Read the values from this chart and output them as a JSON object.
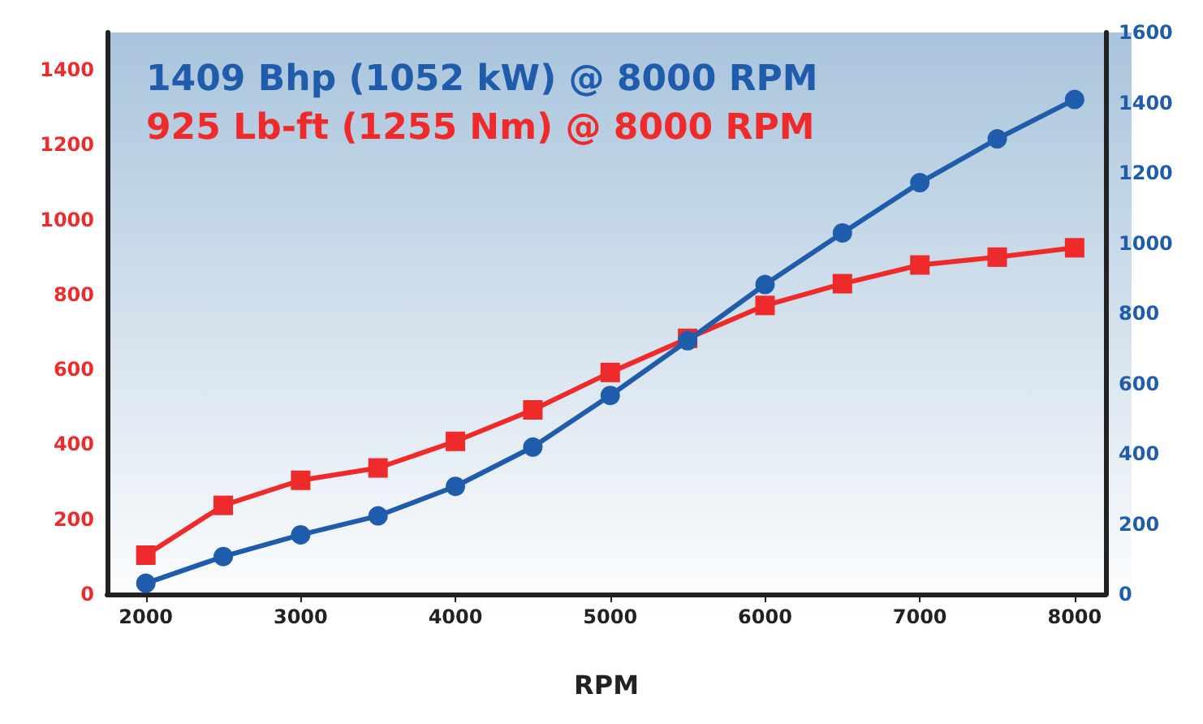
{
  "chart_data": {
    "type": "line",
    "xlabel": "RPM",
    "annotations": [
      "1409 Bhp (1052 kW) @ 8000 RPM",
      "925 Lb-ft (1255 Nm) @ 8000 RPM"
    ],
    "x": [
      2000,
      2500,
      3000,
      3500,
      4000,
      4500,
      5000,
      5500,
      6000,
      6500,
      7000,
      7500,
      8000
    ],
    "series": [
      {
        "color": "#1f5cac",
        "axis": "y2",
        "marker": "circle",
        "values": [
          31,
          107,
          169,
          223,
          307,
          419,
          566,
          722,
          882,
          1029,
          1172,
          1297,
          1409
        ]
      },
      {
        "color": "#ee2a2a",
        "marker": "square",
        "values": [
          104,
          237,
          304,
          337,
          408,
          492,
          592,
          683,
          771,
          829,
          879,
          900,
          925
        ]
      }
    ],
    "xlim": [
      1750,
      8200
    ],
    "xticks": [
      2000,
      3000,
      4000,
      5000,
      6000,
      7000,
      8000
    ],
    "ylim": [
      0,
      1500
    ],
    "yticks": [
      0,
      200,
      400,
      600,
      800,
      1000,
      1200,
      1400
    ],
    "y2lim": [
      0,
      1600
    ],
    "y2ticks": [
      0,
      200,
      400,
      600,
      800,
      1000,
      1200,
      1400,
      1600
    ],
    "grid": false,
    "line_style": "solid"
  }
}
